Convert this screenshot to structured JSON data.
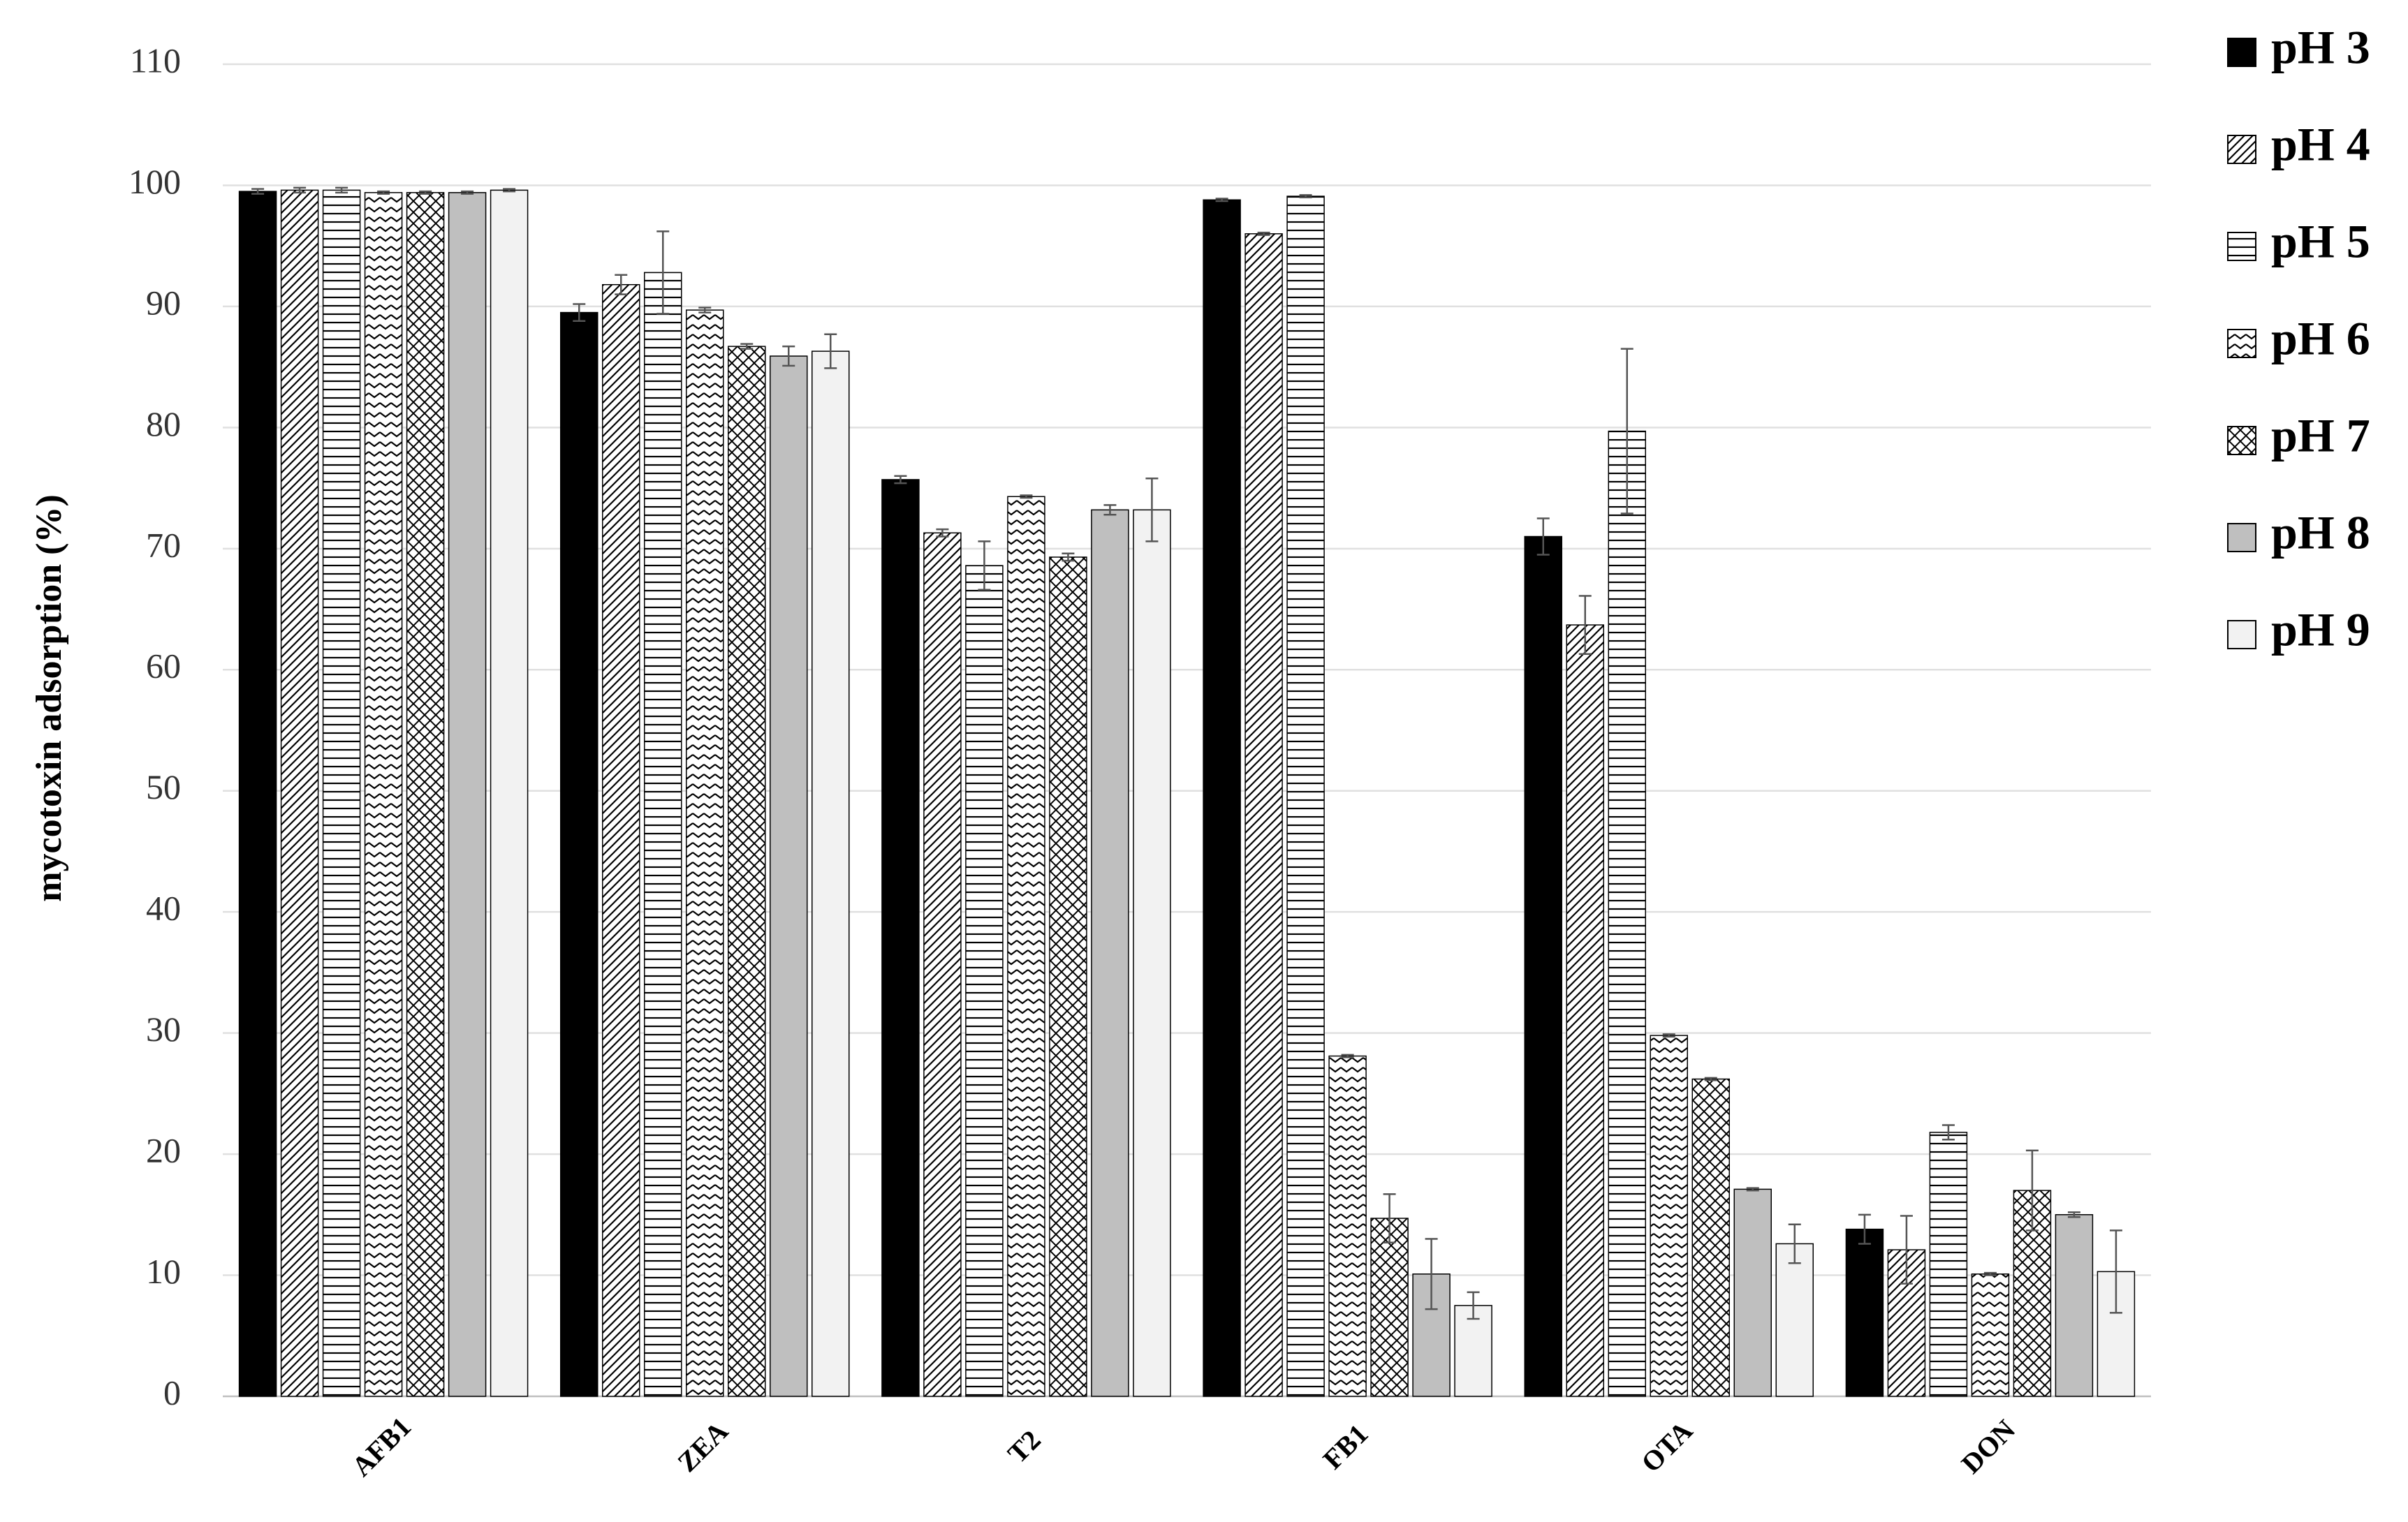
{
  "chart_data": {
    "type": "bar",
    "y_label": "mycotoxin adsorption (%)",
    "categories": [
      "AFB1",
      "ZEA",
      "T2",
      "FB1",
      "OTA",
      "DON"
    ],
    "ylim": [
      0,
      110
    ],
    "yticks": [
      0,
      10,
      20,
      30,
      40,
      50,
      60,
      70,
      80,
      90,
      100,
      110
    ],
    "grid": true,
    "series": [
      {
        "name": "pH 3",
        "color": "#000000",
        "pattern": "solid",
        "values": [
          99.5,
          89.5,
          75.7,
          98.8,
          71.0,
          13.8
        ],
        "errors": [
          0.2,
          0.7,
          0.3,
          0.1,
          1.5,
          1.2
        ]
      },
      {
        "name": "pH 4",
        "color": "#ffffff",
        "pattern": "diagonal",
        "values": [
          99.6,
          91.8,
          71.3,
          96.0,
          63.7,
          12.1
        ],
        "errors": [
          0.2,
          0.8,
          0.3,
          0.1,
          2.4,
          2.8
        ]
      },
      {
        "name": "pH 5",
        "color": "#ffffff",
        "pattern": "horizontal",
        "values": [
          99.6,
          92.8,
          68.6,
          99.1,
          79.7,
          21.8
        ],
        "errors": [
          0.2,
          3.4,
          2.0,
          0.1,
          6.8,
          0.6
        ]
      },
      {
        "name": "pH 6",
        "color": "#ffffff",
        "pattern": "zigzag",
        "values": [
          99.4,
          89.7,
          74.3,
          28.1,
          29.8,
          10.1
        ],
        "errors": [
          0.1,
          0.2,
          0.1,
          0.1,
          0.1,
          0.1
        ]
      },
      {
        "name": "pH 7",
        "color": "#ffffff",
        "pattern": "crosshatch",
        "values": [
          99.4,
          86.7,
          69.3,
          14.7,
          26.2,
          17.0
        ],
        "errors": [
          0.1,
          0.2,
          0.3,
          2.0,
          0.1,
          3.3
        ]
      },
      {
        "name": "pH 8",
        "color": "#bfbfbf",
        "pattern": "solid",
        "values": [
          99.4,
          85.9,
          73.2,
          10.1,
          17.1,
          15.0
        ],
        "errors": [
          0.1,
          0.8,
          0.4,
          2.9,
          0.1,
          0.2
        ]
      },
      {
        "name": "pH 9",
        "color": "#f2f2f2",
        "pattern": "solid",
        "values": [
          99.6,
          86.3,
          73.2,
          7.5,
          12.6,
          10.3
        ],
        "errors": [
          0.1,
          1.4,
          2.6,
          1.1,
          1.6,
          3.4
        ]
      }
    ]
  }
}
